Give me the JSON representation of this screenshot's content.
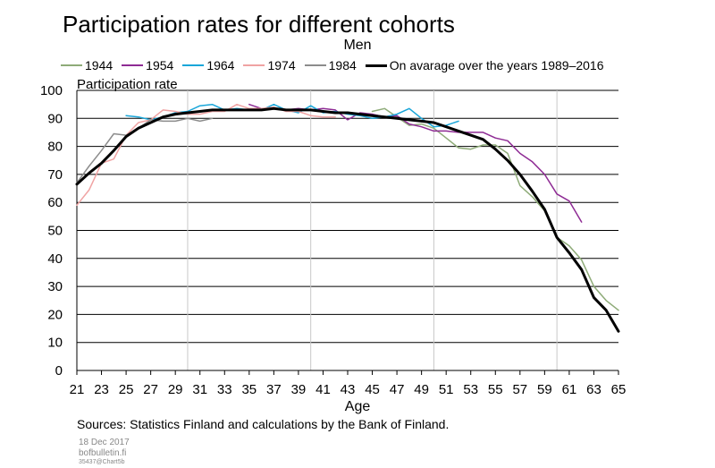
{
  "chart_data": {
    "type": "line",
    "title": "Participation rates for different cohorts",
    "subtitle": "Men",
    "ylabel": "Participation rate",
    "xlabel": "Age",
    "xlim": [
      21,
      65
    ],
    "ylim": [
      0,
      100
    ],
    "yticks": [
      "0",
      "10",
      "20",
      "30",
      "40",
      "50",
      "60",
      "70",
      "80",
      "90",
      "100"
    ],
    "xticks": [
      "21",
      "23",
      "25",
      "27",
      "29",
      "31",
      "33",
      "35",
      "37",
      "39",
      "41",
      "43",
      "45",
      "47",
      "49",
      "51",
      "53",
      "55",
      "57",
      "59",
      "61",
      "63",
      "65"
    ],
    "grid": "horizontal major, vertical at every 10 years",
    "legend_position": "top",
    "series": [
      {
        "name": "1944",
        "color": "#8eab78",
        "width": 1.5,
        "x": [
          45,
          46,
          47,
          48,
          49,
          50,
          51,
          52,
          53,
          54,
          55,
          56,
          57,
          58,
          59,
          60,
          61,
          62,
          63,
          64,
          65
        ],
        "y": [
          92.5,
          93.5,
          90.5,
          87.5,
          88,
          86.5,
          83,
          79.5,
          79,
          80.5,
          80.5,
          77.5,
          66,
          62,
          57,
          47.5,
          44.5,
          39.5,
          30,
          25,
          21.5
        ]
      },
      {
        "name": "1954",
        "color": "#8e2b94",
        "width": 1.5,
        "x": [
          35,
          36,
          37,
          38,
          39,
          40,
          41,
          42,
          43,
          44,
          45,
          46,
          47,
          48,
          49,
          50,
          51,
          52,
          53,
          54,
          55,
          56,
          57,
          58,
          59,
          60,
          61,
          62
        ],
        "y": [
          95,
          93.5,
          93.5,
          93,
          93.5,
          93,
          93.5,
          93,
          89.5,
          92,
          91.5,
          90.5,
          91,
          88,
          87,
          85.5,
          85.5,
          85,
          85,
          85,
          83,
          82,
          77.5,
          74.5,
          70,
          63,
          60.5,
          53
        ]
      },
      {
        "name": "1964",
        "color": "#19a6d9",
        "width": 1.5,
        "x": [
          25,
          26,
          27,
          28,
          29,
          30,
          31,
          32,
          33,
          34,
          35,
          36,
          37,
          38,
          39,
          40,
          41,
          42,
          43,
          44,
          45,
          46,
          47,
          48,
          49,
          50,
          51,
          52
        ],
        "y": [
          91,
          90.5,
          89.5,
          90.5,
          92,
          92.5,
          94.5,
          95,
          93,
          93.5,
          93,
          93,
          95,
          93,
          92,
          94.5,
          92,
          92.5,
          91.5,
          91,
          90,
          90.5,
          91.5,
          93.5,
          90,
          87,
          87.5,
          89
        ]
      },
      {
        "name": "1974",
        "color": "#f0a3a3",
        "width": 1.5,
        "x": [
          21,
          22,
          23,
          24,
          25,
          26,
          27,
          28,
          29,
          30,
          31,
          32,
          33,
          34,
          35,
          36,
          37,
          38,
          39,
          40,
          41,
          42
        ],
        "y": [
          59,
          64.5,
          74,
          75.5,
          84,
          88.5,
          89.5,
          93,
          92.5,
          91.5,
          91.5,
          92.5,
          92.5,
          95,
          93.5,
          93.5,
          94,
          92.5,
          92.5,
          91,
          90.5,
          90.5
        ]
      },
      {
        "name": "1984",
        "color": "#8c8c8c",
        "width": 1.5,
        "x": [
          21,
          22,
          23,
          24,
          25,
          26,
          27,
          28,
          29,
          30,
          31,
          32
        ],
        "y": [
          67,
          73,
          78.5,
          84.5,
          84,
          86.5,
          89.5,
          89,
          89,
          90,
          89,
          90
        ]
      },
      {
        "name": "On avarage over the years 1989–2016",
        "color": "#000000",
        "width": 3,
        "x": [
          21,
          22,
          23,
          24,
          25,
          26,
          27,
          28,
          29,
          30,
          31,
          32,
          33,
          34,
          35,
          36,
          37,
          38,
          39,
          40,
          41,
          42,
          43,
          44,
          45,
          46,
          47,
          48,
          49,
          50,
          51,
          52,
          53,
          54,
          55,
          56,
          57,
          58,
          59,
          60,
          61,
          62,
          63,
          64,
          65
        ],
        "y": [
          66.5,
          70.5,
          74,
          78.5,
          83.5,
          86.5,
          88.5,
          90.5,
          91.5,
          92,
          92.5,
          93,
          93,
          93,
          93,
          93,
          93.5,
          93,
          93,
          93,
          92.5,
          92,
          92,
          91.5,
          91,
          90.5,
          90,
          89.5,
          89,
          88.5,
          87,
          85.5,
          84,
          82.5,
          79,
          75,
          70,
          64,
          57.5,
          47.5,
          42,
          36,
          26,
          21.5,
          14
        ]
      }
    ]
  },
  "source": "Sources: Statistics Finland and calculations by the Bank of Finland.",
  "footer": {
    "date": "18 Dec 2017",
    "site": "bofbulletin.fi",
    "code": "35437@Chart5b"
  }
}
